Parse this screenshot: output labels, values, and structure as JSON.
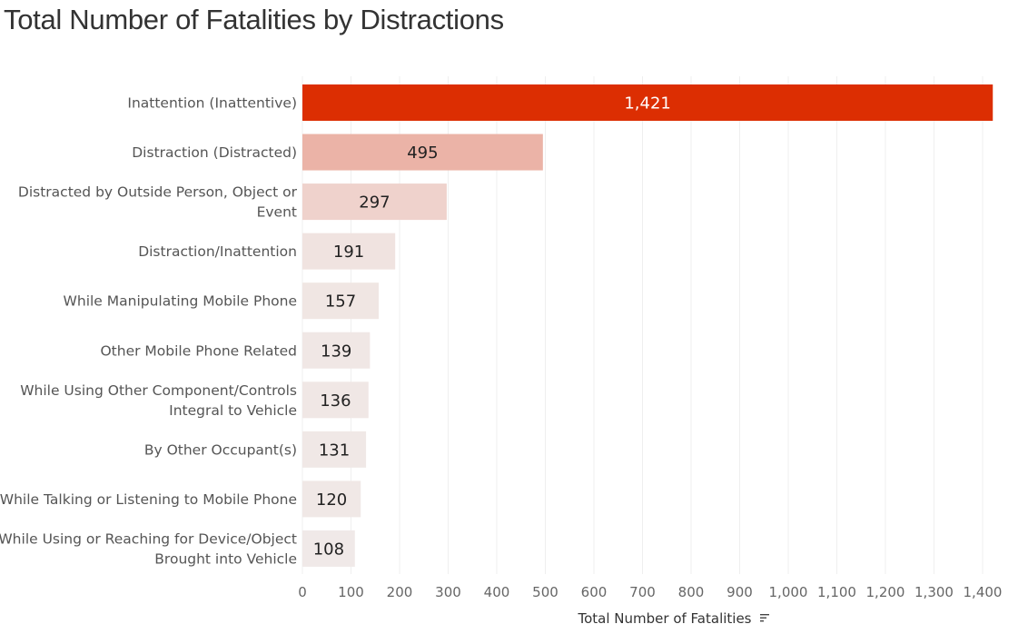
{
  "chart_data": {
    "type": "bar",
    "orientation": "horizontal",
    "title": "Total Number of Fatalities by Distractions",
    "xlabel": "Total Number of Fatalities",
    "ylabel": "",
    "xlim": [
      0,
      1450
    ],
    "xticks": [
      0,
      100,
      200,
      300,
      400,
      500,
      600,
      700,
      800,
      900,
      1000,
      1100,
      1200,
      1300,
      1400
    ],
    "xtick_labels": [
      "0",
      "100",
      "200",
      "300",
      "400",
      "500",
      "600",
      "700",
      "800",
      "900",
      "1,000",
      "1,100",
      "1,200",
      "1,300",
      "1,400"
    ],
    "grid": true,
    "legend": "none",
    "sort_icon": "sort-descending-icon",
    "color_scale": {
      "low": "#f0e9e8",
      "high": "#dc2e02"
    },
    "categories": [
      [
        "Inattention (Inattentive)"
      ],
      [
        "Distraction (Distracted)"
      ],
      [
        "Distracted by Outside Person, Object or",
        "Event"
      ],
      [
        "Distraction/Inattention"
      ],
      [
        "While Manipulating Mobile Phone"
      ],
      [
        "Other Mobile Phone Related"
      ],
      [
        "While Using Other Component/Controls",
        "Integral to Vehicle"
      ],
      [
        "By Other Occupant(s)"
      ],
      [
        "While Talking or Listening to Mobile Phone"
      ],
      [
        "While Using or Reaching for Device/Object",
        "Brought into Vehicle"
      ]
    ],
    "values": [
      1421,
      495,
      297,
      191,
      157,
      139,
      136,
      131,
      120,
      108
    ],
    "value_labels": [
      "1,421",
      "495",
      "297",
      "191",
      "157",
      "139",
      "136",
      "131",
      "120",
      "108"
    ],
    "bar_colors": [
      "#dc2e02",
      "#ebb3a7",
      "#efd2cc",
      "#f0e3e0",
      "#f0e6e3",
      "#f0e7e5",
      "#f0e7e5",
      "#f0e8e6",
      "#f0e8e6",
      "#f0e9e8"
    ]
  }
}
